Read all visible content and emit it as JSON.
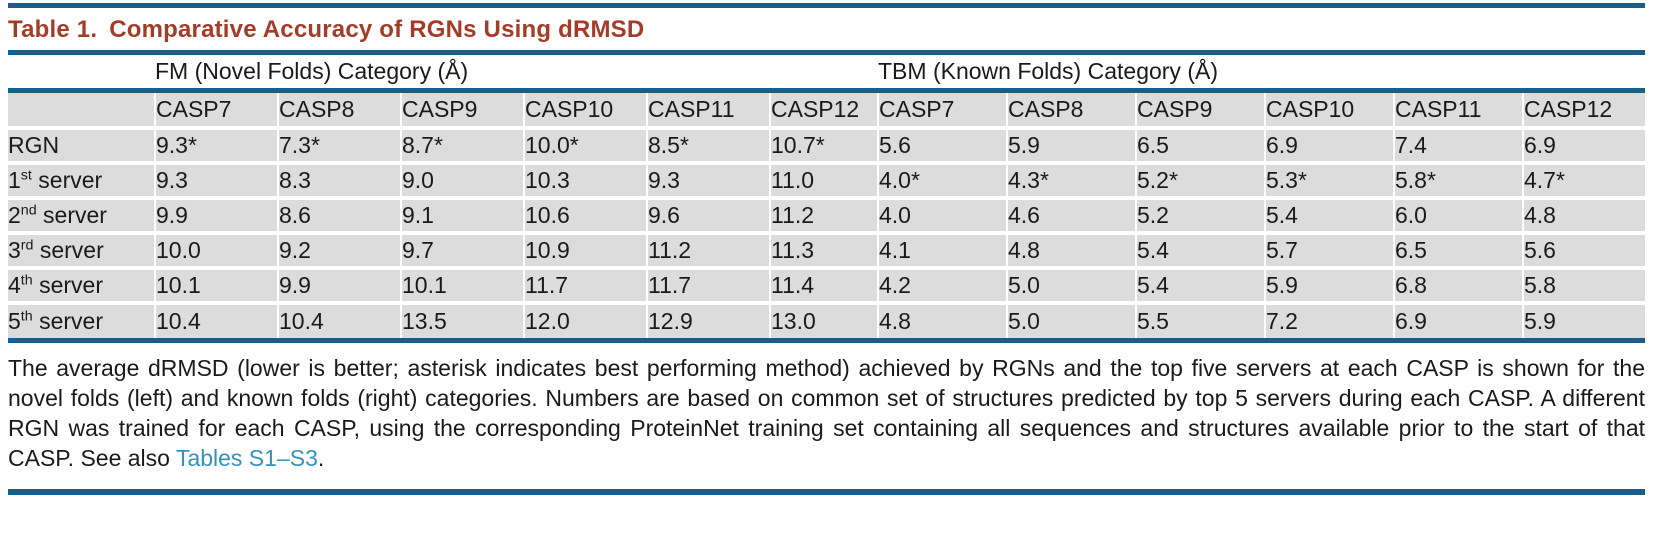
{
  "colors": {
    "title_red": "#A33C28",
    "rule_blue": "#1A5F87",
    "row_grey": "#DCDCDC",
    "link_blue": "#3492BD",
    "text_black": "#1A1A1A"
  },
  "title": {
    "label": "Table 1.",
    "text": "Comparative Accuracy of RGNs Using dRMSD"
  },
  "table": {
    "group_headers": [
      {
        "label": "FM (Novel Folds) Category (Å)",
        "span": 6
      },
      {
        "label": "TBM (Known Folds) Category (Å)",
        "span": 6
      }
    ],
    "columns": [
      "CASP7",
      "CASP8",
      "CASP9",
      "CASP10",
      "CASP11",
      "CASP12",
      "CASP7",
      "CASP8",
      "CASP9",
      "CASP10",
      "CASP11",
      "CASP12"
    ],
    "rows": [
      {
        "label": {
          "base": "RGN",
          "sup": "",
          "rest": ""
        },
        "values": [
          "9.3*",
          "7.3*",
          "8.7*",
          "10.0*",
          "8.5*",
          "10.7*",
          "5.6",
          "5.9",
          "6.5",
          "6.9",
          "7.4",
          "6.9"
        ]
      },
      {
        "label": {
          "base": "1",
          "sup": "st",
          "rest": " server"
        },
        "values": [
          "9.3",
          "8.3",
          "9.0",
          "10.3",
          "9.3",
          "11.0",
          "4.0*",
          "4.3*",
          "5.2*",
          "5.3*",
          "5.8*",
          "4.7*"
        ]
      },
      {
        "label": {
          "base": "2",
          "sup": "nd",
          "rest": " server"
        },
        "values": [
          "9.9",
          "8.6",
          "9.1",
          "10.6",
          "9.6",
          "11.2",
          "4.0",
          "4.6",
          "5.2",
          "5.4",
          "6.0",
          "4.8"
        ]
      },
      {
        "label": {
          "base": "3",
          "sup": "rd",
          "rest": " server"
        },
        "values": [
          "10.0",
          "9.2",
          "9.7",
          "10.9",
          "11.2",
          "11.3",
          "4.1",
          "4.8",
          "5.4",
          "5.7",
          "6.5",
          "5.6"
        ]
      },
      {
        "label": {
          "base": "4",
          "sup": "th",
          "rest": " server"
        },
        "values": [
          "10.1",
          "9.9",
          "10.1",
          "11.7",
          "11.7",
          "11.4",
          "4.2",
          "5.0",
          "5.4",
          "5.9",
          "6.8",
          "5.8"
        ]
      },
      {
        "label": {
          "base": "5",
          "sup": "th",
          "rest": " server"
        },
        "values": [
          "10.4",
          "10.4",
          "13.5",
          "12.0",
          "12.9",
          "13.0",
          "4.8",
          "5.0",
          "5.5",
          "7.2",
          "6.9",
          "5.9"
        ]
      }
    ]
  },
  "caption": {
    "text_before_link": "The average dRMSD (lower is better; asterisk indicates best performing method) achieved by RGNs and the top five servers at each CASP is shown for the novel folds (left) and known folds (right) categories. Numbers are based on common set of structures predicted by top 5 servers during each CASP. A different RGN was trained for each CASP, using the corresponding ProteinNet training set containing all sequences and structures available prior to the start of that CASP. See also ",
    "link_text": "Tables S1–S3",
    "text_after_link": "."
  }
}
